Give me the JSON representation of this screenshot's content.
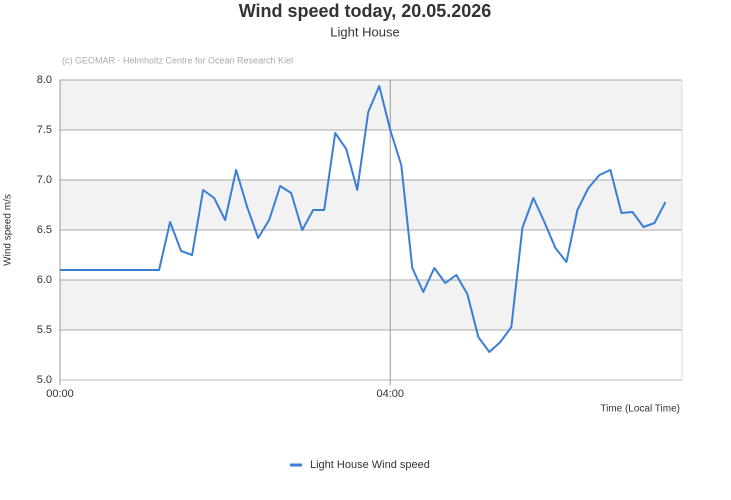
{
  "chart_data": {
    "type": "line",
    "title": "Wind speed today, 20.05.2026",
    "subtitle": "Light House",
    "credit": "(c) GEOMAR - Helmholtz Centre for Ocean Research Kiel",
    "y_label": "Wind speed  m/s",
    "x_label": "Time (Local Time)",
    "x": [
      0,
      8,
      16,
      24,
      32,
      40,
      48,
      56,
      64,
      72,
      80,
      88,
      96,
      104,
      112,
      120,
      128,
      136,
      144,
      152,
      160,
      168,
      176,
      184,
      192,
      200,
      208,
      216,
      224,
      232,
      240,
      248,
      256,
      264,
      272,
      280,
      288,
      296,
      304,
      312,
      320,
      328,
      336,
      344,
      352,
      360,
      368,
      376,
      384,
      392,
      400,
      408,
      416,
      424,
      432,
      440
    ],
    "series": [
      {
        "name": "Light House Wind speed",
        "color": "#3a7fd5",
        "values": [
          6.1,
          6.1,
          6.1,
          6.1,
          6.1,
          6.1,
          6.1,
          6.1,
          6.1,
          6.1,
          6.58,
          6.29,
          6.25,
          6.9,
          6.82,
          6.6,
          7.1,
          6.73,
          6.42,
          6.6,
          6.94,
          6.87,
          6.5,
          6.7,
          6.7,
          7.47,
          7.31,
          6.9,
          7.68,
          7.94,
          7.5,
          7.15,
          6.12,
          5.88,
          6.12,
          5.97,
          6.05,
          5.86,
          5.43,
          5.28,
          5.38,
          5.53,
          6.52,
          6.82,
          6.58,
          6.32,
          6.18,
          6.7,
          6.92,
          7.05,
          7.1,
          6.67,
          6.68,
          6.53,
          6.57,
          6.78
        ]
      }
    ],
    "xlim": [
      0,
      452
    ],
    "xticks": [
      {
        "value": 0,
        "label": "00:00"
      },
      {
        "value": 240,
        "label": "04:00"
      }
    ],
    "ylim": [
      5,
      8
    ],
    "yticks": [
      {
        "value": 5,
        "label": "5.0"
      },
      {
        "value": 5.5,
        "label": "5.5"
      },
      {
        "value": 6,
        "label": "6.0"
      },
      {
        "value": 6.5,
        "label": "6.5"
      },
      {
        "value": 7,
        "label": "7.0"
      },
      {
        "value": 7.5,
        "label": "7.5"
      },
      {
        "value": 8,
        "label": "8.0"
      }
    ],
    "grid": true
  }
}
